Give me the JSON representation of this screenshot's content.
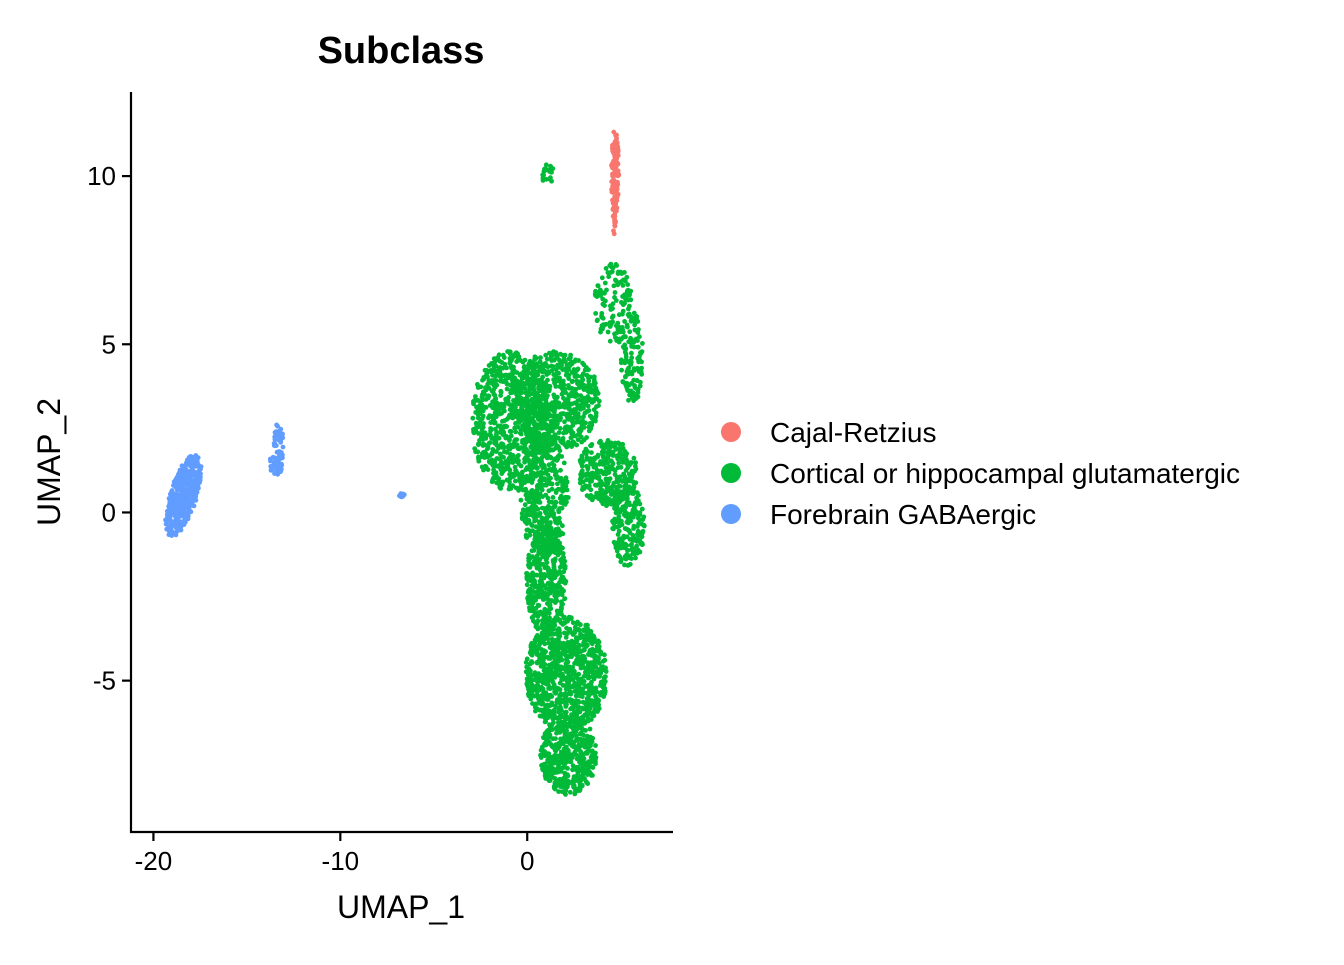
{
  "chart_data": {
    "type": "scatter",
    "title": "Subclass",
    "xlabel": "UMAP_1",
    "ylabel": "UMAP_2",
    "xlim": [
      -21.2,
      7.8
    ],
    "ylim": [
      -9.5,
      12.5
    ],
    "xticks": [
      -20,
      -10,
      0
    ],
    "yticks": [
      -5,
      0,
      5,
      10
    ],
    "xtick_labels": [
      "-20",
      "-10",
      "0"
    ],
    "ytick_labels": [
      "-5",
      "0",
      "5",
      "10"
    ],
    "grid": false,
    "legend": {
      "position": "right",
      "entries": [
        "Cajal-Retzius",
        "Cortical or hippocampal glutamatergic",
        "Forebrain GABAergic"
      ]
    },
    "series": [
      {
        "name": "Cajal-Retzius",
        "color": "#F8766D",
        "clusters": [
          {
            "shape": "ellipse",
            "cx": 4.7,
            "cy": 10.0,
            "rx": 0.2,
            "ry": 1.4,
            "n": 120
          },
          {
            "shape": "ellipse",
            "cx": 4.65,
            "cy": 8.4,
            "rx": 0.08,
            "ry": 0.15,
            "n": 4
          }
        ]
      },
      {
        "name": "Cortical or hippocampal glutamatergic",
        "color": "#00BA38",
        "clusters": [
          {
            "shape": "ellipse",
            "cx": 1.1,
            "cy": 10.05,
            "rx": 0.35,
            "ry": 0.3,
            "n": 22
          },
          {
            "shape": "ellipse",
            "cx": 4.6,
            "cy": 6.2,
            "rx": 1.0,
            "ry": 1.2,
            "n": 120
          },
          {
            "shape": "ellipse",
            "cx": 5.6,
            "cy": 4.6,
            "rx": 0.6,
            "ry": 1.4,
            "n": 120
          },
          {
            "shape": "ellipse",
            "cx": -0.9,
            "cy": 2.7,
            "rx": 2.1,
            "ry": 2.1,
            "n": 700
          },
          {
            "shape": "ellipse",
            "cx": 1.5,
            "cy": 3.3,
            "rx": 2.4,
            "ry": 1.5,
            "n": 600
          },
          {
            "shape": "ellipse",
            "cx": 4.3,
            "cy": 1.2,
            "rx": 1.6,
            "ry": 1.0,
            "n": 300
          },
          {
            "shape": "ellipse",
            "cx": 5.4,
            "cy": -0.4,
            "rx": 0.9,
            "ry": 1.2,
            "n": 200
          },
          {
            "shape": "ellipse",
            "cx": 0.9,
            "cy": 0.5,
            "rx": 1.3,
            "ry": 1.8,
            "n": 400
          },
          {
            "shape": "ellipse",
            "cx": 1.0,
            "cy": -2.0,
            "rx": 1.1,
            "ry": 1.6,
            "n": 380
          },
          {
            "shape": "ellipse",
            "cx": 2.1,
            "cy": -4.8,
            "rx": 2.2,
            "ry": 1.7,
            "n": 900
          },
          {
            "shape": "ellipse",
            "cx": 2.2,
            "cy": -7.2,
            "rx": 1.5,
            "ry": 1.2,
            "n": 450
          }
        ]
      },
      {
        "name": "Forebrain GABAergic",
        "color": "#619CFF",
        "clusters": [
          {
            "shape": "ellipse",
            "cx": -18.4,
            "cy": 0.5,
            "rx": 1.4,
            "ry": 0.65,
            "rotate_deg": 55,
            "n": 420
          },
          {
            "shape": "ellipse",
            "cx": -13.3,
            "cy": 1.9,
            "rx": 0.25,
            "ry": 0.8,
            "n": 60
          },
          {
            "shape": "ellipse",
            "cx": -13.6,
            "cy": 1.4,
            "rx": 0.2,
            "ry": 0.3,
            "n": 14
          },
          {
            "shape": "ellipse",
            "cx": -6.7,
            "cy": 0.5,
            "rx": 0.15,
            "ry": 0.08,
            "n": 10
          }
        ]
      }
    ]
  }
}
